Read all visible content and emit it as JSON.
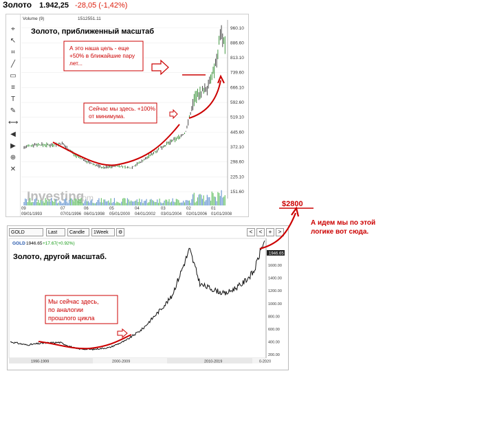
{
  "header": {
    "title": "Золото",
    "price": "1.942,25",
    "change": "-28,05 (-1,42%)"
  },
  "chart1": {
    "volume_label": "Volume (9)",
    "volume_value": "1512551.11",
    "title": "Золото, приближенный масштаб",
    "watermark_main": "Investing",
    "watermark_suffix": ".com",
    "y_ticks": [
      "960.10",
      "886.60",
      "813.10",
      "739.60",
      "666.10",
      "592.60",
      "519.10",
      "445.60",
      "372.10",
      "298.60",
      "225.10",
      "151.60"
    ],
    "x_ticks_top": [
      "09",
      "07",
      "06",
      "05",
      "04",
      "03",
      "02",
      "01"
    ],
    "x_ticks_bottom": [
      "09/01/1993",
      "07/01/1996",
      "06/01/1998",
      "05/01/2000",
      "04/01/2002",
      "03/01/2004",
      "02/01/2006",
      "01/01/2008"
    ],
    "annotation_target": "А это наша цель - еще +50% в ближайшие пару лет...",
    "annotation_here": "Сейчас мы здесь. +100% от минимума.",
    "toolbar_icons": [
      "crosshair-icon",
      "cursor-icon",
      "magnet-icon",
      "line-icon",
      "rectangle-icon",
      "fib-icon",
      "text-icon",
      "brush-icon",
      "measure-icon",
      "arrow-left-icon",
      "arrow-right-icon",
      "zoom-icon",
      "trash-icon"
    ]
  },
  "chart2": {
    "controls": [
      "GOLD",
      "Last",
      "Candle",
      "1Week"
    ],
    "nav": [
      "<",
      "<",
      "+",
      ">"
    ],
    "legend_symbol": "GOLD",
    "legend_price": "1946.65",
    "legend_change": "+17.67(+0.92%)",
    "current_price_tag": "1946.65",
    "title": "Золото, другой масштаб.",
    "y_ticks": [
      "1800.00",
      "1600.00",
      "1400.00",
      "1200.00",
      "1000.00",
      "800.00",
      "600.00",
      "400.00",
      "200.00"
    ],
    "x_labels": [
      "1990-1999",
      "2000-2009",
      "2010-2019",
      "0-2020"
    ],
    "annotation_here": "Мы сейчас здесь, по аналогии прошлого цикла"
  },
  "outside": {
    "target_price": "$2800",
    "note": "А идем мы по этой логике вот сюда."
  },
  "chart_data": [
    {
      "type": "line",
      "title": "Золото, приближенный масштаб",
      "ylim": [
        151.6,
        1000
      ],
      "x": [
        1993.7,
        1994.5,
        1995.5,
        1996.5,
        1997.5,
        1998.5,
        1999.5,
        2000.5,
        2001.5,
        2002.5,
        2003.5,
        2004.5,
        2005.5,
        2006.2,
        2006.6,
        2007.2,
        2007.8,
        2008.1,
        2008.2,
        2008.5
      ],
      "y": [
        370,
        385,
        382,
        388,
        330,
        294,
        270,
        280,
        268,
        310,
        360,
        400,
        440,
        620,
        640,
        670,
        790,
        950,
        920,
        850
      ]
    },
    {
      "type": "line",
      "title": "Золото, другой масштаб.",
      "ylim": [
        200,
        2000
      ],
      "x": [
        1990,
        1992,
        1994,
        1996,
        1998,
        2000,
        2002,
        2004,
        2006,
        2008,
        2009.5,
        2011.7,
        2013,
        2014,
        2016,
        2018,
        2019.5,
        2020.6
      ],
      "y": [
        400,
        350,
        380,
        390,
        290,
        280,
        310,
        420,
        600,
        880,
        1100,
        1850,
        1300,
        1250,
        1150,
        1300,
        1500,
        1946.65
      ]
    }
  ]
}
